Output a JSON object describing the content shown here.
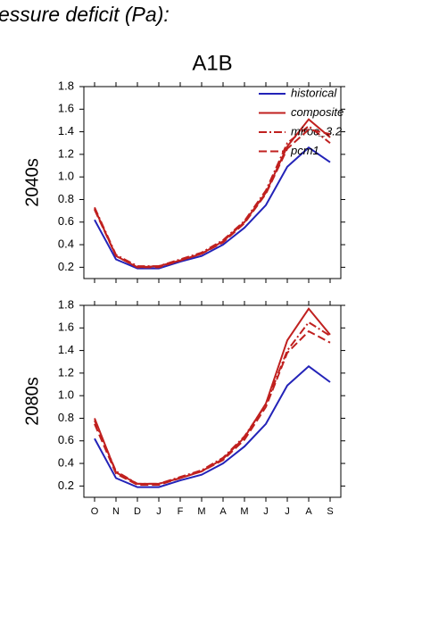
{
  "heading": "essure deficit (Pa):",
  "chart_data": [
    {
      "type": "line",
      "title": "A1B",
      "ylabel": "2040s",
      "legend": "upper right",
      "categories": [
        null,
        null,
        null,
        null,
        null,
        null,
        null,
        null,
        null,
        null,
        null,
        null
      ],
      "ylim": [
        0.1,
        1.8
      ],
      "yticks": [
        0.2,
        0.4,
        0.6,
        0.8,
        {
          "value": 1.0,
          "label": "1.0"
        },
        1.2,
        1.4,
        1.6,
        1.8
      ],
      "series": [
        {
          "name": "historical",
          "color": "#2323b8",
          "dash": "solid",
          "values": [
            0.62,
            0.27,
            0.19,
            0.19,
            0.25,
            0.3,
            0.4,
            0.55,
            0.75,
            1.09,
            1.26,
            1.13
          ]
        },
        {
          "name": "composite",
          "color": "#c0201f",
          "dash": "solid",
          "values": [
            0.72,
            0.3,
            0.2,
            0.21,
            0.26,
            0.32,
            0.43,
            0.6,
            0.86,
            1.27,
            1.51,
            1.35
          ]
        },
        {
          "name": "miroc_3.2",
          "color": "#c0201f",
          "dash": "dashdot",
          "values": [
            0.73,
            0.31,
            0.21,
            0.21,
            0.27,
            0.33,
            0.44,
            0.61,
            0.88,
            1.3,
            1.45,
            1.3
          ]
        },
        {
          "name": "pcm1",
          "color": "#c0201f",
          "dash": "dash",
          "values": [
            0.71,
            0.3,
            0.2,
            0.2,
            0.26,
            0.32,
            0.42,
            0.59,
            0.85,
            1.25,
            1.42,
            1.38
          ]
        }
      ]
    },
    {
      "type": "line",
      "ylabel": "2080s",
      "categories": [
        "O",
        "N",
        "D",
        "J",
        "F",
        "M",
        "A",
        "M",
        "J",
        "J",
        "A",
        "S"
      ],
      "ylim": [
        0.1,
        1.8
      ],
      "yticks": [
        0.2,
        0.4,
        0.6,
        0.8,
        {
          "value": 1.0,
          "label": "1.0"
        },
        1.2,
        1.4,
        1.6,
        1.8
      ],
      "series": [
        {
          "name": "historical",
          "color": "#2323b8",
          "dash": "solid",
          "values": [
            0.62,
            0.27,
            0.19,
            0.19,
            0.25,
            0.3,
            0.4,
            0.55,
            0.75,
            1.09,
            1.26,
            1.12
          ]
        },
        {
          "name": "composite",
          "color": "#c0201f",
          "dash": "solid",
          "values": [
            0.8,
            0.32,
            0.22,
            0.22,
            0.27,
            0.33,
            0.44,
            0.63,
            0.93,
            1.49,
            1.77,
            1.54
          ]
        },
        {
          "name": "miroc_3.2",
          "color": "#c0201f",
          "dash": "dashdot",
          "values": [
            0.78,
            0.33,
            0.22,
            0.22,
            0.28,
            0.34,
            0.45,
            0.64,
            0.92,
            1.4,
            1.65,
            1.53
          ]
        },
        {
          "name": "pcm1",
          "color": "#c0201f",
          "dash": "dash",
          "values": [
            0.75,
            0.31,
            0.21,
            0.21,
            0.27,
            0.33,
            0.43,
            0.61,
            0.9,
            1.38,
            1.57,
            1.47
          ]
        }
      ]
    }
  ]
}
